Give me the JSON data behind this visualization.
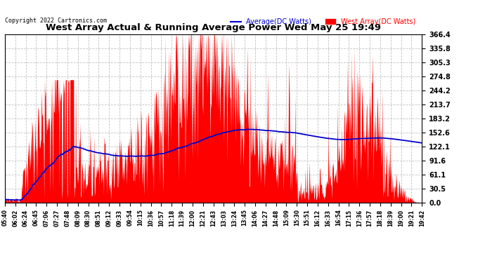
{
  "title": "West Array Actual & Running Average Power Wed May 25 19:49",
  "copyright": "Copyright 2022 Cartronics.com",
  "legend_avg": "Average(DC Watts)",
  "legend_west": "West Array(DC Watts)",
  "ylim": [
    0.0,
    366.4
  ],
  "yticks": [
    0.0,
    30.5,
    61.1,
    91.6,
    122.1,
    152.6,
    183.2,
    213.7,
    244.2,
    274.8,
    305.3,
    335.8,
    366.4
  ],
  "bg_color": "#ffffff",
  "grid_color": "#bbbbbb",
  "fill_color": "#ff0000",
  "avg_color": "#0000cc",
  "title_color": "#000000",
  "copyright_color": "#000000",
  "legend_avg_color": "#0000cc",
  "legend_west_color": "#ff0000",
  "xtick_labels": [
    "05:40",
    "06:02",
    "06:24",
    "06:45",
    "07:06",
    "07:27",
    "07:48",
    "08:09",
    "08:30",
    "08:51",
    "09:12",
    "09:33",
    "09:54",
    "10:15",
    "10:36",
    "10:57",
    "11:18",
    "11:39",
    "12:00",
    "12:21",
    "12:43",
    "13:03",
    "13:24",
    "13:45",
    "14:06",
    "14:27",
    "14:48",
    "15:09",
    "15:30",
    "15:51",
    "16:12",
    "16:33",
    "16:54",
    "17:15",
    "17:36",
    "17:57",
    "18:18",
    "18:39",
    "19:00",
    "19:21",
    "19:42"
  ]
}
